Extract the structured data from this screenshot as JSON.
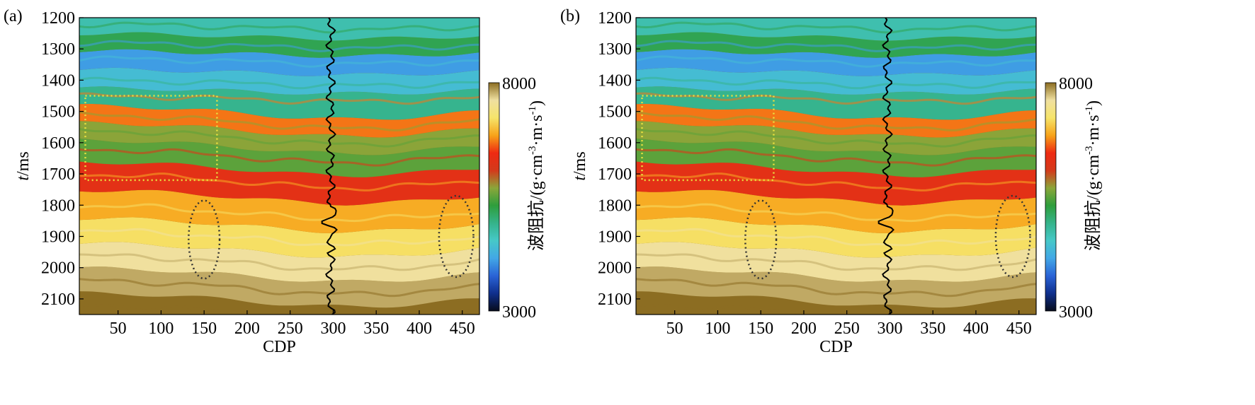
{
  "chart_data": [
    {
      "type": "heatmap",
      "panel_label": "(a)",
      "xlabel": "CDP",
      "ylabel_italic": "t",
      "ylabel_unit": "/ms",
      "xlim": [
        5,
        470
      ],
      "ylim": [
        1200,
        2150
      ],
      "y_inverted": true,
      "x_ticks": [
        50,
        100,
        150,
        200,
        250,
        300,
        350,
        400,
        450
      ],
      "y_ticks": [
        1200,
        1300,
        1400,
        1500,
        1600,
        1700,
        1800,
        1900,
        2000,
        2100
      ],
      "colorbar": {
        "label_base": "波阻抗/(g·cm",
        "label_exp1": "-3",
        "label_mid": "·m·s",
        "label_exp2": "-1",
        "label_end": ")",
        "min": 3000,
        "max": 8000,
        "min_label": "3000",
        "max_label": "8000",
        "colormap": [
          "#070c1c",
          "#0f2f8c",
          "#2a63d6",
          "#42a7e6",
          "#46c8c8",
          "#35b38a",
          "#2e9e3c",
          "#8aa63a",
          "#d33a1b",
          "#ee2a12",
          "#f7a319",
          "#f6e46a",
          "#f0e0a0",
          "#8c6d22"
        ]
      },
      "impedance_layers": [
        {
          "t": 1220,
          "value": 4700
        },
        {
          "t": 1280,
          "value": 5200
        },
        {
          "t": 1330,
          "value": 4100
        },
        {
          "t": 1400,
          "value": 4400
        },
        {
          "t": 1450,
          "value": 4900
        },
        {
          "t": 1510,
          "value": 6700
        },
        {
          "t": 1560,
          "value": 5700
        },
        {
          "t": 1620,
          "value": 5500
        },
        {
          "t": 1700,
          "value": 6300
        },
        {
          "t": 1800,
          "value": 6900
        },
        {
          "t": 1880,
          "value": 7200
        },
        {
          "t": 1960,
          "value": 7600
        },
        {
          "t": 2040,
          "value": 7800
        },
        {
          "t": 2120,
          "value": 8000
        }
      ],
      "well_log_cdp": 297,
      "annotations": [
        {
          "shape": "dotted-rectangle",
          "color": "#e8e040",
          "cdp_range": [
            12,
            165
          ],
          "t_range": [
            1450,
            1720
          ]
        },
        {
          "shape": "dotted-ellipse",
          "color": "#333333",
          "cdp_center": 150,
          "t_center": 1910,
          "cdp_half_width": 18,
          "t_half_height": 125
        },
        {
          "shape": "dotted-ellipse",
          "color": "#333333",
          "cdp_center": 443,
          "t_center": 1900,
          "cdp_half_width": 20,
          "t_half_height": 130
        }
      ]
    },
    {
      "type": "heatmap",
      "panel_label": "(b)",
      "xlabel": "CDP",
      "ylabel_italic": "t",
      "ylabel_unit": "/ms",
      "xlim": [
        5,
        470
      ],
      "ylim": [
        1200,
        2150
      ],
      "y_inverted": true,
      "x_ticks": [
        50,
        100,
        150,
        200,
        250,
        300,
        350,
        400,
        450
      ],
      "y_ticks": [
        1200,
        1300,
        1400,
        1500,
        1600,
        1700,
        1800,
        1900,
        2000,
        2100
      ],
      "colorbar": {
        "label_base": "波阻抗/(g·cm",
        "label_exp1": "-3",
        "label_mid": "·m·s",
        "label_exp2": "-1",
        "label_end": ")",
        "min": 3000,
        "max": 8000,
        "min_label": "3000",
        "max_label": "8000",
        "colormap": [
          "#070c1c",
          "#0f2f8c",
          "#2a63d6",
          "#42a7e6",
          "#46c8c8",
          "#35b38a",
          "#2e9e3c",
          "#8aa63a",
          "#d33a1b",
          "#ee2a12",
          "#f7a319",
          "#f6e46a",
          "#f0e0a0",
          "#8c6d22"
        ]
      },
      "impedance_layers": [
        {
          "t": 1220,
          "value": 4700
        },
        {
          "t": 1280,
          "value": 5200
        },
        {
          "t": 1330,
          "value": 4100
        },
        {
          "t": 1400,
          "value": 4400
        },
        {
          "t": 1450,
          "value": 4900
        },
        {
          "t": 1510,
          "value": 6700
        },
        {
          "t": 1560,
          "value": 5700
        },
        {
          "t": 1620,
          "value": 5500
        },
        {
          "t": 1700,
          "value": 6300
        },
        {
          "t": 1800,
          "value": 6900
        },
        {
          "t": 1880,
          "value": 7200
        },
        {
          "t": 1960,
          "value": 7600
        },
        {
          "t": 2040,
          "value": 7800
        },
        {
          "t": 2120,
          "value": 8000
        }
      ],
      "well_log_cdp": 297,
      "annotations": [
        {
          "shape": "dotted-rectangle",
          "color": "#e8e040",
          "cdp_range": [
            12,
            165
          ],
          "t_range": [
            1450,
            1720
          ]
        },
        {
          "shape": "dotted-ellipse",
          "color": "#333333",
          "cdp_center": 150,
          "t_center": 1910,
          "cdp_half_width": 18,
          "t_half_height": 125
        },
        {
          "shape": "dotted-ellipse",
          "color": "#333333",
          "cdp_center": 443,
          "t_center": 1900,
          "cdp_half_width": 20,
          "t_half_height": 130
        }
      ]
    }
  ]
}
